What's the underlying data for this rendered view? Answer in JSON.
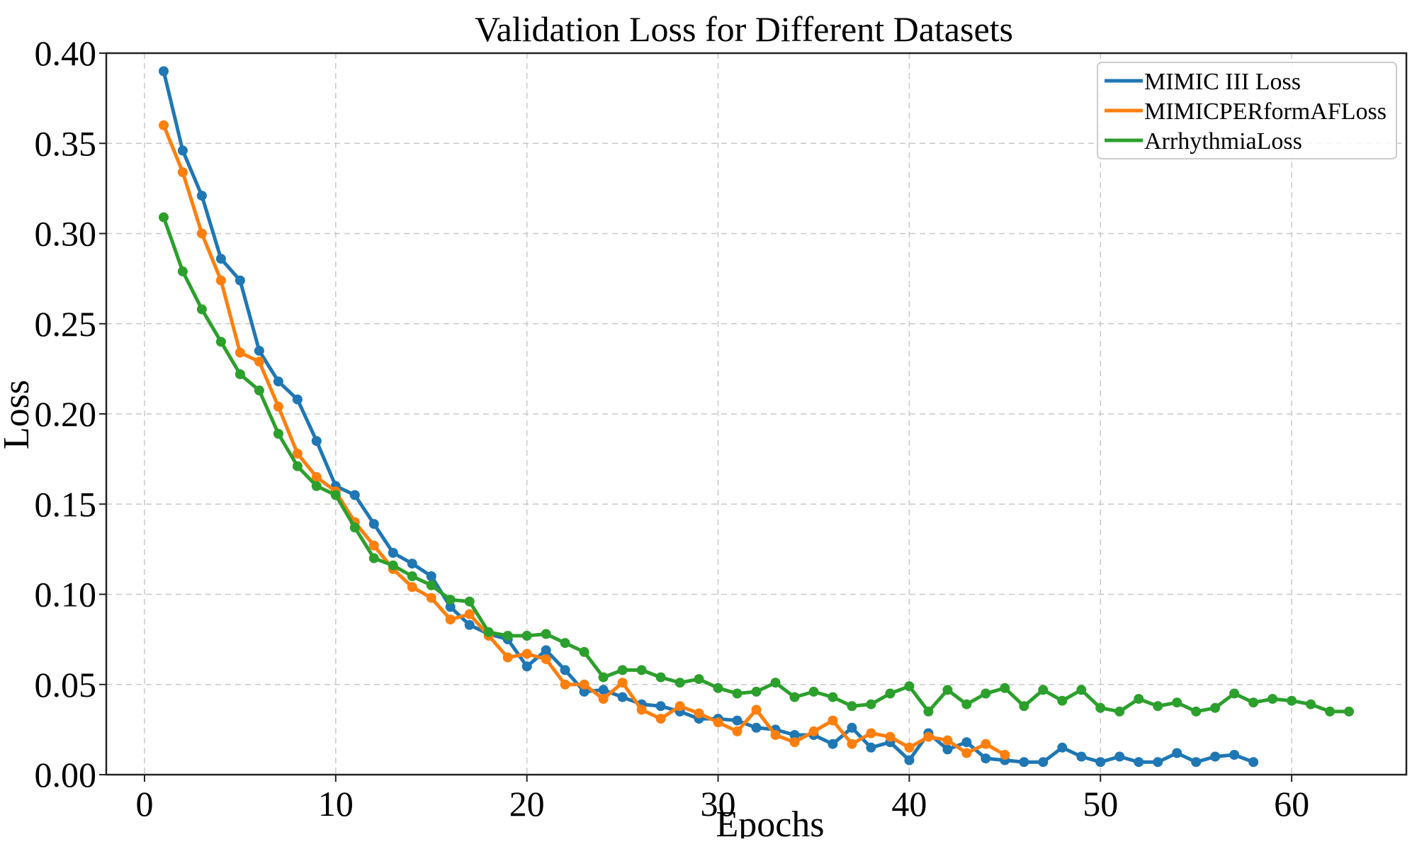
{
  "chart_data": {
    "type": "line",
    "title": "Validation Loss for Different Datasets",
    "xlabel": "Epochs",
    "ylabel": "Loss",
    "xlim": [
      -2,
      66
    ],
    "ylim": [
      0,
      0.4
    ],
    "xticks": [
      0,
      10,
      20,
      30,
      40,
      50,
      60
    ],
    "xtick_labels": [
      "0",
      "10",
      "20",
      "30",
      "40",
      "50",
      "60"
    ],
    "yticks": [
      0,
      0.05,
      0.1,
      0.15,
      0.2,
      0.25,
      0.3,
      0.35,
      0.4
    ],
    "ytick_labels": [
      "0.00",
      "0.05",
      "0.10",
      "0.15",
      "0.20",
      "0.25",
      "0.30",
      "0.35",
      "0.40"
    ],
    "grid": true,
    "legend_position": "top-right",
    "series": [
      {
        "name": "MIMIC III Loss",
        "color": "#1f77b4",
        "x": [
          1,
          2,
          3,
          4,
          5,
          6,
          7,
          8,
          9,
          10,
          11,
          12,
          13,
          14,
          15,
          16,
          17,
          18,
          19,
          20,
          21,
          22,
          23,
          24,
          25,
          26,
          27,
          28,
          29,
          30,
          31,
          32,
          33,
          34,
          35,
          36,
          37,
          38,
          39,
          40,
          41,
          42,
          43,
          44,
          45,
          46,
          47,
          48,
          49,
          50,
          51,
          52,
          53,
          54,
          55,
          56,
          57,
          58
        ],
        "values": [
          0.39,
          0.346,
          0.321,
          0.286,
          0.274,
          0.235,
          0.218,
          0.208,
          0.185,
          0.16,
          0.155,
          0.139,
          0.123,
          0.117,
          0.11,
          0.093,
          0.083,
          0.078,
          0.075,
          0.06,
          0.069,
          0.058,
          0.046,
          0.047,
          0.043,
          0.039,
          0.038,
          0.035,
          0.031,
          0.031,
          0.03,
          0.026,
          0.025,
          0.022,
          0.022,
          0.017,
          0.026,
          0.015,
          0.018,
          0.008,
          0.023,
          0.014,
          0.018,
          0.009,
          0.008,
          0.007,
          0.007,
          0.015,
          0.01,
          0.007,
          0.01,
          0.007,
          0.007,
          0.012,
          0.007,
          0.01,
          0.011,
          0.007
        ]
      },
      {
        "name": "MIMICPERformAFLoss",
        "color": "#ff7f0e",
        "x": [
          1,
          2,
          3,
          4,
          5,
          6,
          7,
          8,
          9,
          10,
          11,
          12,
          13,
          14,
          15,
          16,
          17,
          18,
          19,
          20,
          21,
          22,
          23,
          24,
          25,
          26,
          27,
          28,
          29,
          30,
          31,
          32,
          33,
          34,
          35,
          36,
          37,
          38,
          39,
          40,
          41,
          42,
          43,
          44,
          45
        ],
        "values": [
          0.36,
          0.334,
          0.3,
          0.274,
          0.234,
          0.229,
          0.204,
          0.178,
          0.165,
          0.157,
          0.14,
          0.127,
          0.114,
          0.104,
          0.098,
          0.086,
          0.089,
          0.077,
          0.065,
          0.067,
          0.064,
          0.05,
          0.05,
          0.042,
          0.051,
          0.036,
          0.031,
          0.038,
          0.034,
          0.029,
          0.024,
          0.036,
          0.022,
          0.018,
          0.024,
          0.03,
          0.017,
          0.023,
          0.021,
          0.015,
          0.021,
          0.019,
          0.012,
          0.017,
          0.011
        ]
      },
      {
        "name": "ArrhythmiaLoss",
        "color": "#2ca02c",
        "x": [
          1,
          2,
          3,
          4,
          5,
          6,
          7,
          8,
          9,
          10,
          11,
          12,
          13,
          14,
          15,
          16,
          17,
          18,
          19,
          20,
          21,
          22,
          23,
          24,
          25,
          26,
          27,
          28,
          29,
          30,
          31,
          32,
          33,
          34,
          35,
          36,
          37,
          38,
          39,
          40,
          41,
          42,
          43,
          44,
          45,
          46,
          47,
          48,
          49,
          50,
          51,
          52,
          53,
          54,
          55,
          56,
          57,
          58,
          59,
          60,
          61,
          62,
          63
        ],
        "values": [
          0.309,
          0.279,
          0.258,
          0.24,
          0.222,
          0.213,
          0.189,
          0.171,
          0.16,
          0.155,
          0.137,
          0.12,
          0.116,
          0.11,
          0.105,
          0.097,
          0.096,
          0.079,
          0.077,
          0.077,
          0.078,
          0.073,
          0.068,
          0.054,
          0.058,
          0.058,
          0.054,
          0.051,
          0.053,
          0.048,
          0.045,
          0.046,
          0.051,
          0.043,
          0.046,
          0.043,
          0.038,
          0.039,
          0.045,
          0.049,
          0.035,
          0.047,
          0.039,
          0.045,
          0.048,
          0.038,
          0.047,
          0.041,
          0.047,
          0.037,
          0.035,
          0.042,
          0.038,
          0.04,
          0.035,
          0.037,
          0.045,
          0.04,
          0.042,
          0.041,
          0.039,
          0.035,
          0.035
        ]
      }
    ]
  }
}
